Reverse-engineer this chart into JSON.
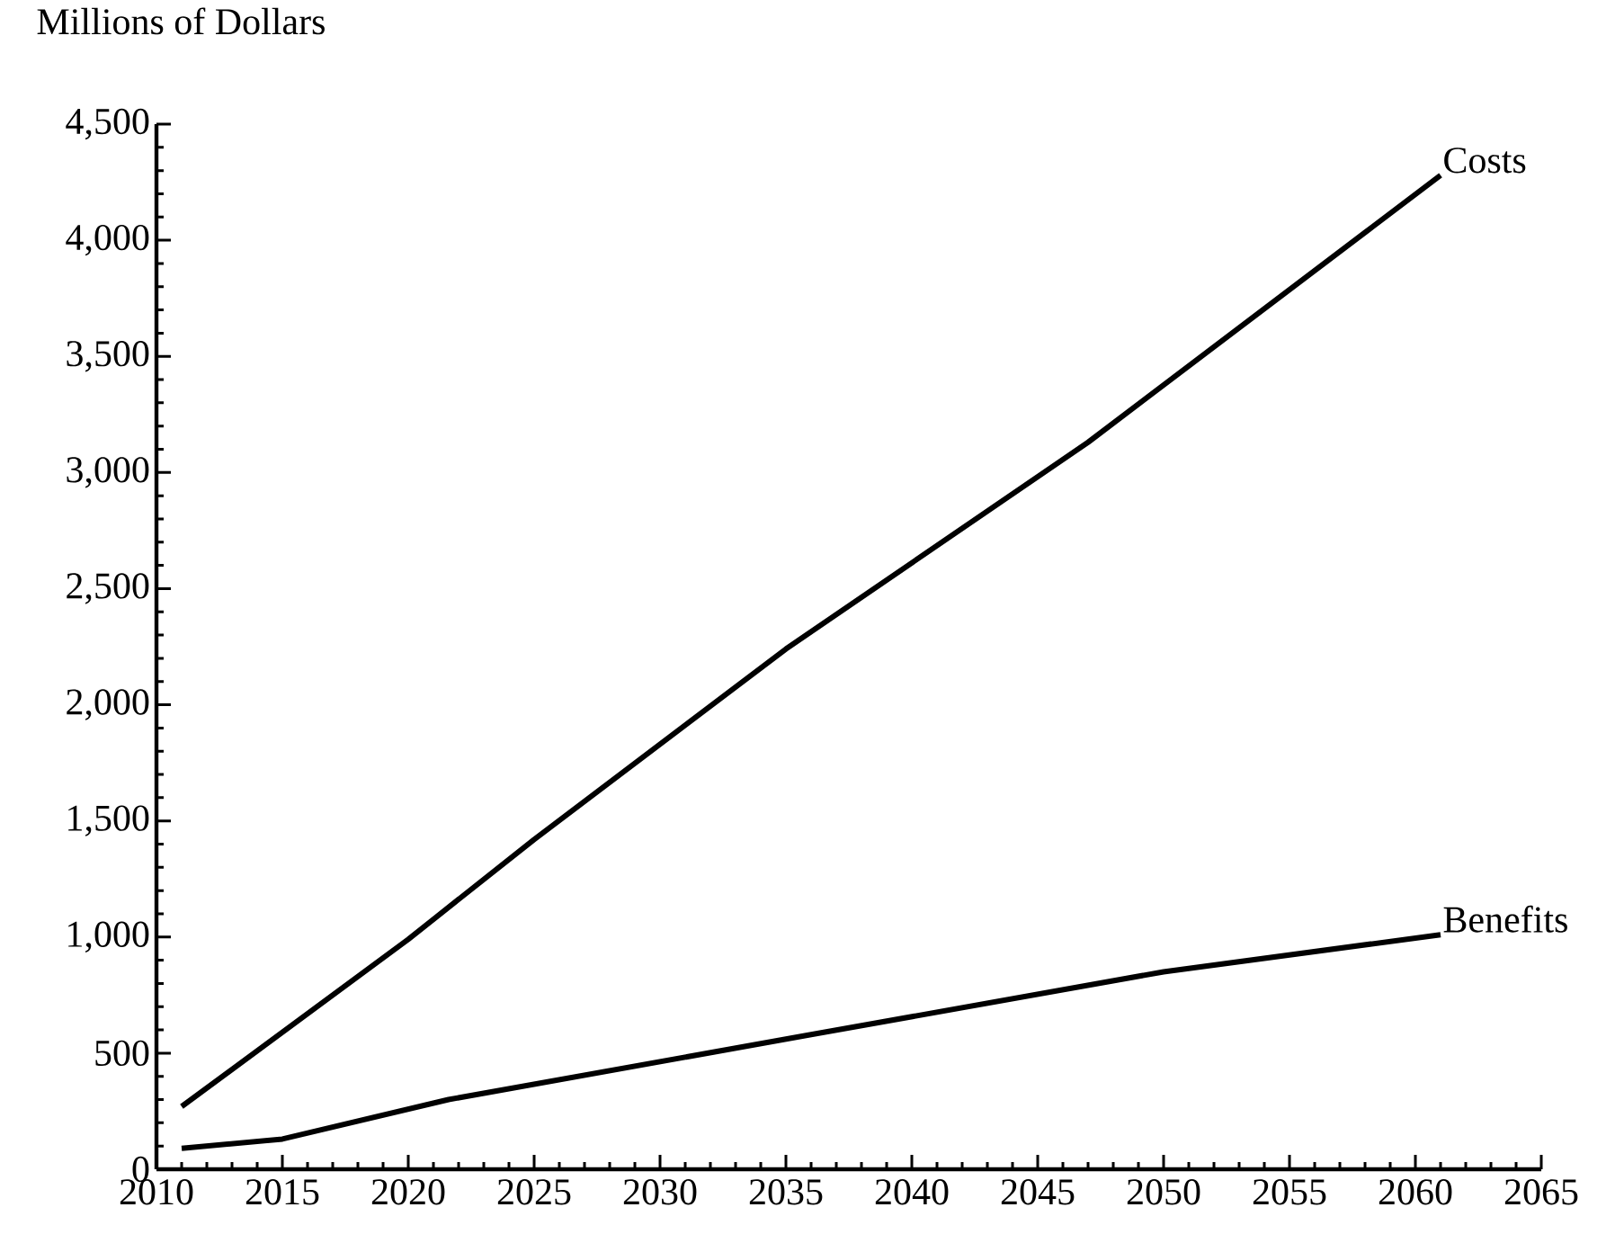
{
  "chart_data": {
    "type": "line",
    "ylabel": "Millions of Dollars",
    "xlim": [
      2010,
      2065
    ],
    "xticks": [
      2010,
      2015,
      2020,
      2025,
      2030,
      2035,
      2040,
      2045,
      2050,
      2055,
      2060,
      2065
    ],
    "ylim": [
      0,
      4500
    ],
    "yticks": [
      0,
      {
        "value": 500,
        "label": "500"
      },
      {
        "value": 1000,
        "label": "1,000"
      },
      {
        "value": 1500,
        "label": "1,500"
      },
      {
        "value": 2000,
        "label": "2,000"
      },
      {
        "value": 2500,
        "label": "2,500"
      },
      {
        "value": 3000,
        "label": "3,000"
      },
      {
        "value": 3500,
        "label": "3,500"
      },
      {
        "value": 4000,
        "label": "4,000"
      },
      {
        "value": 4500,
        "label": "4,500"
      }
    ],
    "grid": false,
    "legend": false,
    "marker": "none",
    "line_style": "solid",
    "series": [
      {
        "name": "Costs",
        "color": "#000000",
        "x": [
          2011,
          2020,
          2025,
          2035,
          2047,
          2061
        ],
        "values": [
          270,
          990,
          1420,
          2240,
          3130,
          4280
        ]
      },
      {
        "name": "Benefits",
        "color": "#000000",
        "x": [
          2011,
          2015,
          2021.6,
          2036,
          2050,
          2061
        ],
        "values": [
          90,
          130,
          300,
          580,
          850,
          1010
        ]
      }
    ]
  }
}
